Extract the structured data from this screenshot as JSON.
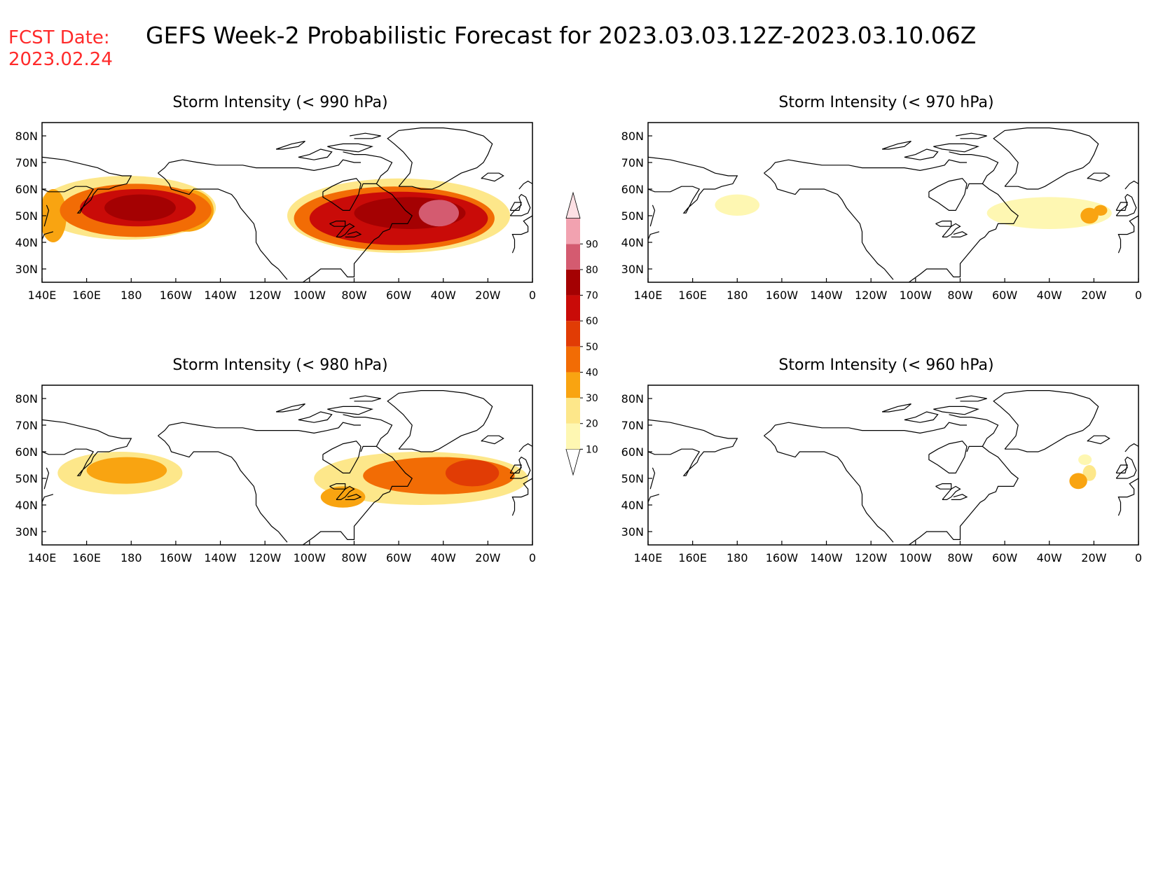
{
  "header": {
    "fcst_label": "FCST Date:",
    "fcst_date": "2023.02.24",
    "title": "GEFS Week-2 Probabilistic Forecast for 2023.03.03.12Z-2023.03.10.06Z"
  },
  "axes": {
    "x_ticks": [
      "140E",
      "160E",
      "180",
      "160W",
      "140W",
      "120W",
      "100W",
      "80W",
      "60W",
      "40W",
      "20W",
      "0"
    ],
    "y_ticks": [
      "80N",
      "70N",
      "60N",
      "50N",
      "40N",
      "30N"
    ],
    "lon_range": [
      140,
      360
    ],
    "lat_range": [
      25,
      85
    ]
  },
  "panels": [
    {
      "title": "Storm Intensity (< 990 hPa)",
      "blobs": [
        {
          "lon": 178,
          "lat": 53,
          "rx": 40,
          "ry": 12,
          "p": 20
        },
        {
          "lon": 182,
          "lat": 52,
          "rx": 34,
          "ry": 10,
          "p": 40
        },
        {
          "lon": 183,
          "lat": 53,
          "rx": 26,
          "ry": 7,
          "p": 60
        },
        {
          "lon": 184,
          "lat": 53,
          "rx": 16,
          "ry": 5,
          "p": 75
        },
        {
          "lon": 205,
          "lat": 52,
          "rx": 12,
          "ry": 8,
          "p": 35
        },
        {
          "lon": 145,
          "lat": 50,
          "rx": 6,
          "ry": 10,
          "p": 35
        },
        {
          "lon": 300,
          "lat": 50,
          "rx": 50,
          "ry": 14,
          "p": 20
        },
        {
          "lon": 298,
          "lat": 49,
          "rx": 45,
          "ry": 12,
          "p": 40
        },
        {
          "lon": 300,
          "lat": 49,
          "rx": 40,
          "ry": 10,
          "p": 60
        },
        {
          "lon": 305,
          "lat": 51,
          "rx": 25,
          "ry": 6,
          "p": 75
        },
        {
          "lon": 318,
          "lat": 51,
          "rx": 9,
          "ry": 5,
          "p": 85
        }
      ],
      "color_mode": "full"
    },
    {
      "title": "Storm Intensity (< 970 hPa)",
      "blobs": [
        {
          "lon": 180,
          "lat": 54,
          "rx": 10,
          "ry": 4,
          "p": 15
        },
        {
          "lon": 320,
          "lat": 51,
          "rx": 28,
          "ry": 6,
          "p": 15
        },
        {
          "lon": 338,
          "lat": 50,
          "rx": 4,
          "ry": 3,
          "p": 35
        },
        {
          "lon": 343,
          "lat": 52,
          "rx": 3,
          "ry": 2,
          "p": 35
        }
      ],
      "color_mode": "full"
    },
    {
      "title": "Storm Intensity (< 980 hPa)",
      "blobs": [
        {
          "lon": 175,
          "lat": 52,
          "rx": 28,
          "ry": 8,
          "p": 20
        },
        {
          "lon": 178,
          "lat": 53,
          "rx": 18,
          "ry": 5,
          "p": 35
        },
        {
          "lon": 310,
          "lat": 50,
          "rx": 48,
          "ry": 10,
          "p": 20
        },
        {
          "lon": 318,
          "lat": 51,
          "rx": 34,
          "ry": 7,
          "p": 40
        },
        {
          "lon": 333,
          "lat": 52,
          "rx": 12,
          "ry": 5,
          "p": 50
        },
        {
          "lon": 275,
          "lat": 43,
          "rx": 10,
          "ry": 4,
          "p": 35
        }
      ],
      "color_mode": "full"
    },
    {
      "title": "Storm Intensity (< 960 hPa)",
      "blobs": [
        {
          "lon": 333,
          "lat": 49,
          "rx": 4,
          "ry": 3,
          "p": 35
        },
        {
          "lon": 338,
          "lat": 52,
          "rx": 3,
          "ry": 3,
          "p": 25
        },
        {
          "lon": 336,
          "lat": 57,
          "rx": 3,
          "ry": 2,
          "p": 15
        }
      ],
      "color_mode": "full"
    }
  ],
  "colorbar": {
    "labels": [
      "10",
      "20",
      "30",
      "40",
      "50",
      "60",
      "70",
      "80",
      "90"
    ],
    "colors": [
      "#ffffff",
      "#fef7b2",
      "#fde78a",
      "#f9a411",
      "#f26c05",
      "#e13c05",
      "#c90b08",
      "#a40102",
      "#d45b70",
      "#f2a2b0",
      "#fde0e4"
    ]
  },
  "coast": {
    "line_color": "#000000"
  }
}
